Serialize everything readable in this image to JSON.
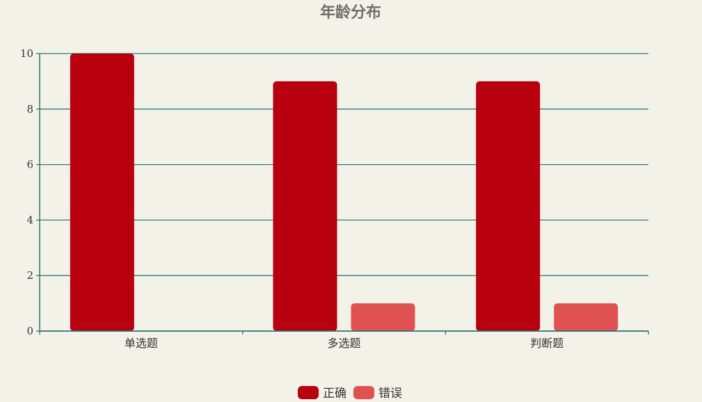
{
  "chart_data": {
    "type": "bar",
    "title": "年龄分布",
    "categories": [
      "单选题",
      "多选题",
      "判断题"
    ],
    "series": [
      {
        "name": "正确",
        "values": [
          10,
          9,
          9
        ],
        "color": "#b8000f"
      },
      {
        "name": "错误",
        "values": [
          0,
          1,
          1
        ],
        "color": "#e05252"
      }
    ],
    "ylim": [
      0,
      10
    ],
    "yticks": [
      0,
      2,
      4,
      6,
      8,
      10
    ],
    "grid": true,
    "legend_position": "bottom-center",
    "axis_color": "#2f6f73",
    "grid_color": "#2f7a7c"
  }
}
